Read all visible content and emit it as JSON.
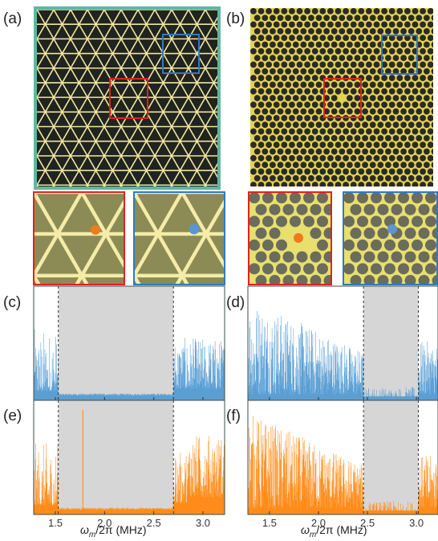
{
  "panel_labels": {
    "a": "(a)",
    "b": "(b)",
    "c": "(c)",
    "d": "(d)",
    "e": "(e)",
    "f": "(f)"
  },
  "colors": {
    "plate_a_border": "#5fb7a0",
    "plate_a_bg": "#1f2420",
    "plate_a_lines": "#f2e6a0",
    "plate_b_bg": "#e3d34e",
    "plate_b_holes": "#2a2a2a",
    "zoom_a_bg": "#8c8b55",
    "zoom_a_lines": "#f4eca8",
    "zoom_b_bg": "#e7df6e",
    "zoom_b_holes": "#6b6c5b",
    "red_box": "#e0231f",
    "blue_box": "#2f79c4",
    "marker_orange": "#f17a1c",
    "marker_blue": "#5b95d4",
    "series_blue": "#5a9fd4",
    "series_orange": "#ff8c1a",
    "bandgap_fill": "#d6d6d6",
    "bandgap_edge": "#333333"
  },
  "x_axis": {
    "title_prefix": "ω",
    "title_sub": "m",
    "title_suffix": "/2π (MHz)"
  },
  "chart_data": [
    {
      "panel": "c",
      "type": "line",
      "series": [
        {
          "values_kind": "noise",
          "color": "#5a9fd4"
        }
      ],
      "xlim": [
        1.28,
        3.22
      ],
      "xticks": [
        1.5,
        2.0,
        2.5,
        3.0
      ],
      "tick_labels": [],
      "shaded_region": [
        1.53,
        2.7
      ],
      "level_profile": "triangular-low"
    },
    {
      "panel": "d",
      "type": "line",
      "series": [
        {
          "values_kind": "noise",
          "color": "#5a9fd4"
        }
      ],
      "xlim": [
        1.28,
        3.22
      ],
      "xticks": [
        1.5,
        2.0,
        2.5,
        3.0
      ],
      "tick_labels": [],
      "shaded_region": [
        2.46,
        3.02
      ],
      "level_profile": "hexagonal-high"
    },
    {
      "panel": "e",
      "type": "line",
      "series": [
        {
          "values_kind": "noise",
          "color": "#ff8c1a"
        }
      ],
      "xlim": [
        1.28,
        3.22
      ],
      "xticks": [
        1.5,
        2.0,
        2.5,
        3.0
      ],
      "tick_labels": [
        "1.5",
        "2.0",
        "2.5",
        "3.0"
      ],
      "shaded_region": [
        1.53,
        2.7
      ],
      "level_profile": "triangular-low"
    },
    {
      "panel": "f",
      "type": "line",
      "series": [
        {
          "values_kind": "noise",
          "color": "#ff8c1a"
        }
      ],
      "xlim": [
        1.28,
        3.22
      ],
      "xticks": [
        1.5,
        2.0,
        2.5,
        3.0
      ],
      "tick_labels": [
        "1.5",
        "2.0",
        "2.5",
        "3.0"
      ],
      "shaded_region": [
        2.46,
        3.02
      ],
      "level_profile": "hexagonal-high"
    }
  ]
}
